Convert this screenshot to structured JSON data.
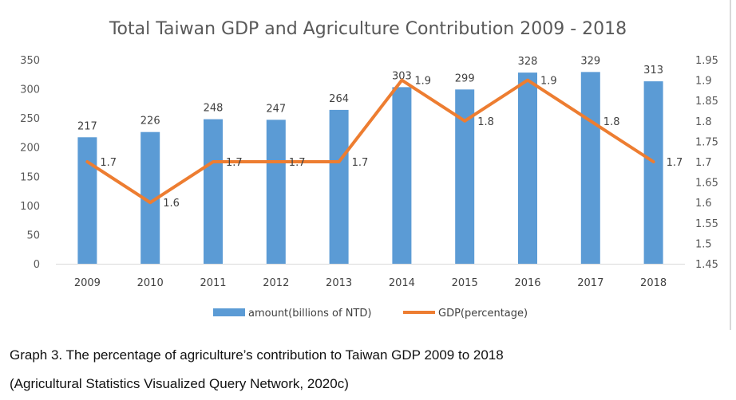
{
  "chart_data": {
    "type": "bar",
    "title": "Total Taiwan GDP and Agriculture Contribution 2009 - 2018",
    "categories": [
      "2009",
      "2010",
      "2011",
      "2012",
      "2013",
      "2014",
      "2015",
      "2016",
      "2017",
      "2018"
    ],
    "series": [
      {
        "name": "amount(billions of NTD)",
        "type": "bar",
        "axis": "left",
        "values": [
          217,
          226,
          248,
          247,
          264,
          303,
          299,
          328,
          329,
          313
        ],
        "color": "#5b9bd5"
      },
      {
        "name": "GDP(percentage)",
        "type": "line",
        "axis": "right",
        "values": [
          1.7,
          1.6,
          1.7,
          1.7,
          1.7,
          1.9,
          1.8,
          1.9,
          1.8,
          1.7
        ],
        "color": "#ed7d31"
      }
    ],
    "y_left": {
      "range": [
        0,
        350
      ],
      "ticks": [
        "0",
        "50",
        "100",
        "150",
        "200",
        "250",
        "300",
        "350"
      ]
    },
    "y_right": {
      "range": [
        1.45,
        1.95
      ],
      "ticks": [
        "1.45",
        "1.5",
        "1.55",
        "1.6",
        "1.65",
        "1.7",
        "1.75",
        "1.8",
        "1.85",
        "1.9",
        "1.95"
      ]
    },
    "grid": false,
    "legend_position": "bottom"
  },
  "captions": {
    "line1": "Graph 3. The percentage of agriculture’s contribution to Taiwan GDP 2009 to 2018",
    "line2": "(Agricultural Statistics Visualized Query Network, 2020c)"
  }
}
